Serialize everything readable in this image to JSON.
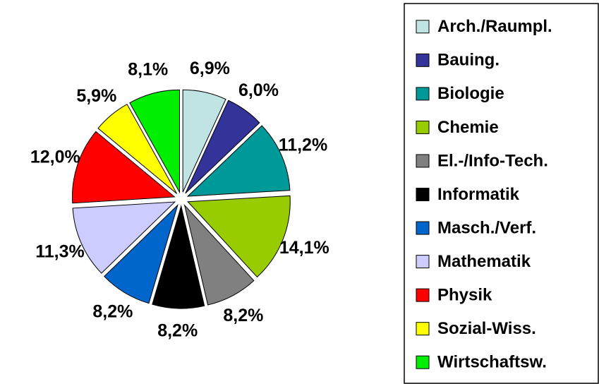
{
  "chart_data": {
    "type": "pie",
    "categories": [
      "Arch./Raumpl.",
      "Bauing.",
      "Biologie",
      "Chemie",
      "El.-/Info-Tech.",
      "Informatik",
      "Masch./Verf.",
      "Mathematik",
      "Physik",
      "Sozial-Wiss.",
      "Wirtschaftsw."
    ],
    "values": [
      6.9,
      6.0,
      11.2,
      14.1,
      8.2,
      8.2,
      8.2,
      11.3,
      12.0,
      5.9,
      8.1
    ],
    "value_labels": [
      "6,9%",
      "6,0%",
      "11,2%",
      "14,1%",
      "8,2%",
      "8,2%",
      "8,2%",
      "11,3%",
      "12,0%",
      "5,9%",
      "8,1%"
    ],
    "colors": [
      "#c0e4e4",
      "#333399",
      "#009999",
      "#99cc00",
      "#808080",
      "#000000",
      "#0066cc",
      "#ccccff",
      "#ff0000",
      "#ffff00",
      "#00ee00"
    ],
    "legend": "right"
  }
}
